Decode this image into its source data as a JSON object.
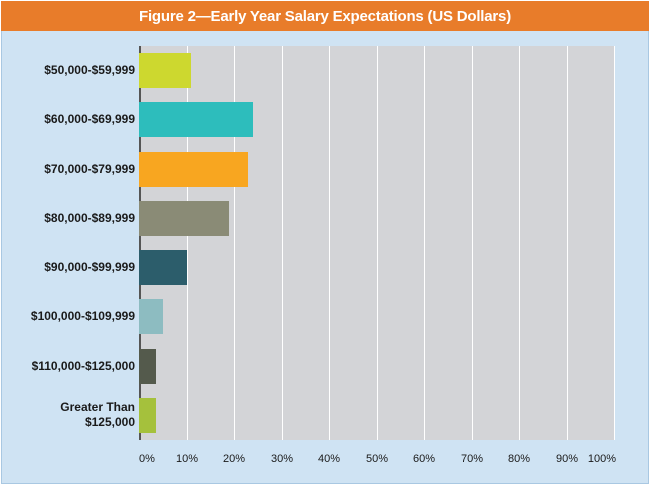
{
  "chart_data": {
    "type": "bar",
    "orientation": "horizontal",
    "title": "Figure 2—Early Year Salary Expectations (US Dollars)",
    "categories": [
      "$50,000-$59,999",
      "$60,000-$69,999",
      "$70,000-$79,999",
      "$80,000-$89,999",
      "$90,000-$99,999",
      "$100,000-$109,999",
      "$110,000-$125,000",
      "Greater Than\n$125,000"
    ],
    "values": [
      11,
      24,
      23,
      19,
      10,
      5,
      3.5,
      3.5
    ],
    "bar_colors": [
      "#cdd82f",
      "#2dbdbc",
      "#f8a620",
      "#8a8b76",
      "#2c5d6b",
      "#8dbcc1",
      "#545a4c",
      "#a5c13c"
    ],
    "xlim": [
      0,
      100
    ],
    "xticks": [
      "0%",
      "10%",
      "20%",
      "30%",
      "40%",
      "50%",
      "60%",
      "70%",
      "80%",
      "90%",
      "100%"
    ],
    "xlabel": "",
    "ylabel": "",
    "grid": true
  },
  "colors": {
    "title_bar": "#e87c2a",
    "background": "#cfe3f3",
    "plot_area": "#d3d4d7"
  }
}
